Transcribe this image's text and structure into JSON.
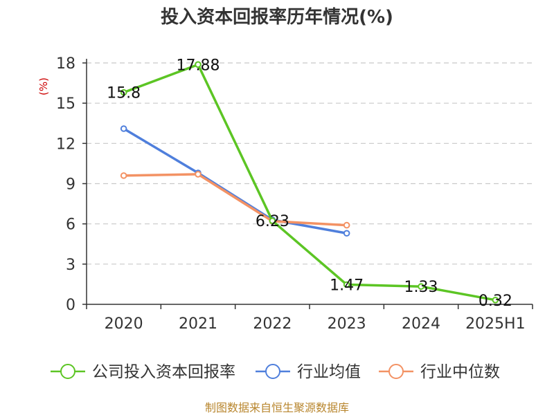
{
  "chart_data": {
    "type": "line",
    "title": "投入资本回报率历年情况(%)",
    "ylabel": "(%)",
    "xlabel": "",
    "categories": [
      "2020",
      "2021",
      "2022",
      "2023",
      "2024",
      "2025H1"
    ],
    "ylim": [
      0,
      18
    ],
    "yticks": [
      0,
      3,
      6,
      9,
      12,
      15,
      18
    ],
    "grid": true,
    "legend": "bottom",
    "series": [
      {
        "name": "公司投入资本回报率",
        "color": "#5cc524",
        "values": [
          15.8,
          17.88,
          6.23,
          1.47,
          1.33,
          0.32
        ],
        "labels": [
          "15.8",
          "17.88",
          "6.23",
          "1.47",
          "1.33",
          "0.32"
        ]
      },
      {
        "name": "行业均值",
        "color": "#4f7fdc",
        "values": [
          13.1,
          9.8,
          6.3,
          5.3,
          null,
          null
        ]
      },
      {
        "name": "行业中位数",
        "color": "#f39264",
        "values": [
          9.6,
          9.7,
          6.2,
          5.9,
          null,
          null
        ]
      }
    ]
  },
  "footer": "制图数据来自恒生聚源数据库"
}
